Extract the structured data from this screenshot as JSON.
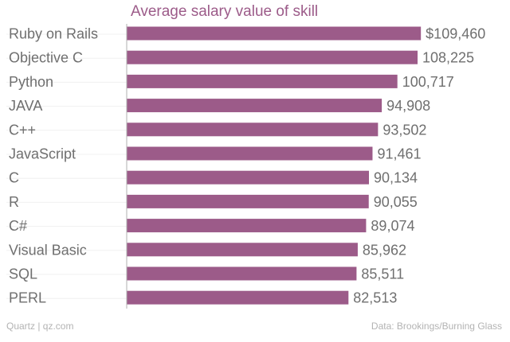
{
  "chart_data": {
    "type": "bar",
    "orientation": "horizontal",
    "title": "Average salary value of skill",
    "categories": [
      "Ruby on Rails",
      "Objective C",
      "Python",
      "JAVA",
      "C++",
      "JavaScript",
      "C",
      "R",
      "C#",
      "Visual Basic",
      "SQL",
      "PERL"
    ],
    "values": [
      109460,
      108225,
      100717,
      94908,
      93502,
      91461,
      90134,
      90055,
      89074,
      85962,
      85511,
      82513
    ],
    "value_labels": [
      "$109,460",
      "108,225",
      "100,717",
      "94,908",
      "93,502",
      "91,461",
      "90,134",
      "90,055",
      "89,074",
      "85,962",
      "85,511",
      "82,513"
    ],
    "xlim": [
      0,
      110000
    ],
    "bar_color": "#9c5b89",
    "grid": false
  },
  "footer": {
    "source_left": "Quartz | qz.com",
    "source_right": "Data: Brookings/Burning Glass"
  }
}
